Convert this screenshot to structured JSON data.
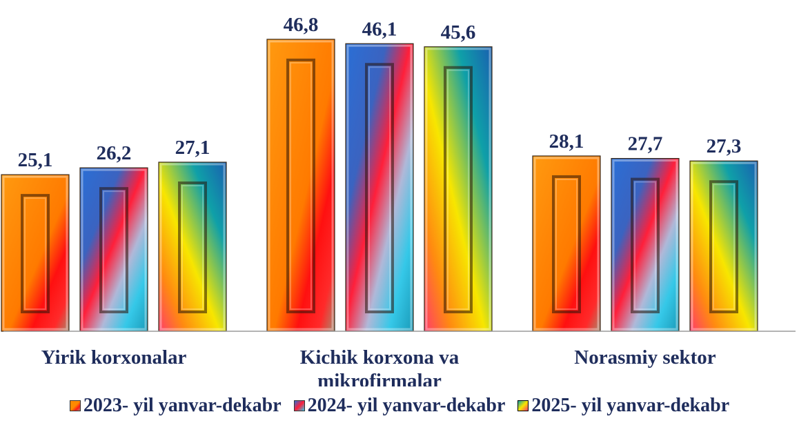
{
  "chart_data": {
    "type": "bar",
    "categories": [
      "Yirik korxonalar",
      "Kichik korxona va mikrofirmalar",
      "Norasmiy sektor"
    ],
    "category_lines": [
      [
        "Yirik korxonalar"
      ],
      [
        "Kichik korxona va",
        "mikrofirmalar"
      ],
      [
        "Norasmiy sektor"
      ]
    ],
    "series": [
      {
        "name": "2023- yil yanvar-dekabr",
        "values": [
          25.1,
          46.8,
          28.1
        ],
        "labels": [
          "25,1",
          "46,8",
          "28,1"
        ]
      },
      {
        "name": "2024- yil yanvar-dekabr",
        "values": [
          26.2,
          46.1,
          27.7
        ],
        "labels": [
          "26,2",
          "46,1",
          "27,7"
        ]
      },
      {
        "name": "2025- yil yanvar-dekabr",
        "values": [
          27.1,
          45.6,
          27.3
        ],
        "labels": [
          "27,1",
          "45,6",
          "27,3"
        ]
      }
    ],
    "ylim": [
      0,
      50
    ],
    "grid": false,
    "legend_position": "bottom",
    "colors": {
      "series_2023": [
        "#ff8a00",
        "#ff1a1a",
        "#b58a6a"
      ],
      "series_2024": [
        "#2a6fd6",
        "#ff1f3a",
        "#35c8e8"
      ],
      "series_2025": [
        "#0fa0a8",
        "#f7e600",
        "#ff3b6b"
      ],
      "axis": "#9a9a9a",
      "text": "#1f2d5c"
    }
  }
}
